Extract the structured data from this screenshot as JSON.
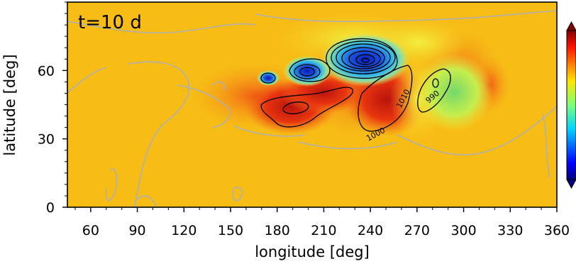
{
  "chart_data": {
    "type": "heatmap",
    "title": "t=10 d",
    "xlabel": "longitude [deg]",
    "ylabel": "latitude [deg]",
    "xlim": [
      45,
      360
    ],
    "ylim": [
      0,
      90
    ],
    "xticks": [
      60,
      90,
      120,
      150,
      180,
      210,
      240,
      270,
      300,
      330,
      360
    ],
    "yticks": [
      0,
      30,
      60
    ],
    "colormap": "jet",
    "colorbar": {
      "extend": "both",
      "tick_labels_visible": false
    },
    "background_color": "#f7bd15",
    "field_features": [
      {
        "kind": "low",
        "lon": 235,
        "lat": 64,
        "color": "#0a1fc8",
        "outline_contours": 6
      },
      {
        "kind": "low",
        "lon": 199,
        "lat": 58,
        "color": "#2370e0",
        "outline_contours": 3
      },
      {
        "kind": "low",
        "lon": 171,
        "lat": 56,
        "color": "#5cc0e8",
        "outline_contours": 1
      },
      {
        "kind": "low",
        "lon": 281,
        "lat": 48,
        "color": "#93e07a",
        "outline_contours": 2
      },
      {
        "kind": "high",
        "lon": 248,
        "lat": 46,
        "color": "#c41810",
        "outline_contours": 1
      },
      {
        "kind": "high",
        "lon": 197,
        "lat": 43,
        "color": "#d0200f",
        "outline_contours": 1
      }
    ],
    "contour_labels": [
      {
        "text": "1000",
        "lon": 247,
        "lat": 32,
        "rotation": -28
      },
      {
        "text": "1010",
        "lon": 262,
        "lat": 45,
        "rotation": -62
      },
      {
        "text": "990",
        "lon": 283,
        "lat": 47,
        "rotation": -40
      }
    ]
  }
}
